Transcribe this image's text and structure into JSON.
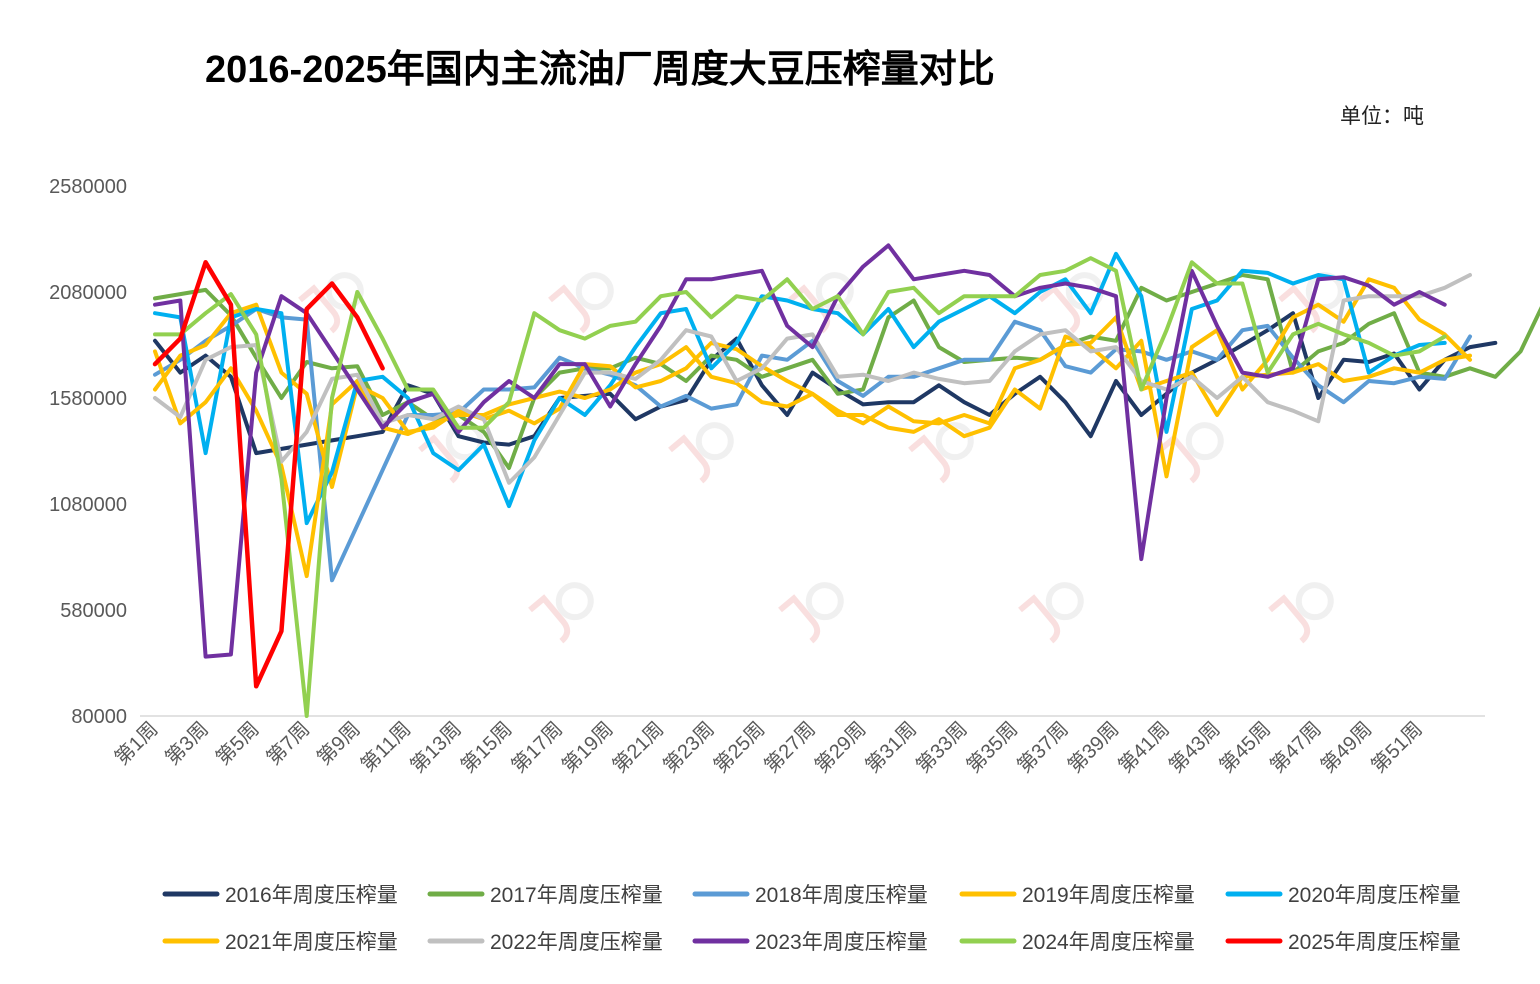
{
  "title": "2016-2025年国内主流油厂周度大豆压榨量对比",
  "unit": "单位：吨",
  "chart_data": {
    "type": "line",
    "ylim": [
      80000,
      2580000
    ],
    "yticks": [
      80000,
      580000,
      1080000,
      1580000,
      2080000,
      2580000
    ],
    "ytick_labels": [
      "80000",
      "580000",
      "1080000",
      "1580000",
      "2080000",
      "2580000"
    ],
    "xtick_labels": [
      "第1周",
      "第3周",
      "第5周",
      "第7周",
      "第9周",
      "第11周",
      "第13周",
      "第15周",
      "第17周",
      "第19周",
      "第21周",
      "第23周",
      "第25周",
      "第27周",
      "第29周",
      "第31周",
      "第33周",
      "第35周",
      "第37周",
      "第39周",
      "第41周",
      "第43周",
      "第45周",
      "第47周",
      "第49周",
      "第51周"
    ],
    "legend_position": "bottom",
    "series": [
      {
        "name": "2016年周度压榨量",
        "color": "#1f3864",
        "values": [
          1850000,
          1700000,
          1780000,
          1680000,
          1320000,
          1340000,
          1360000,
          1380000,
          1400000,
          1420000,
          1640000,
          1600000,
          1400000,
          1370000,
          1360000,
          1400000,
          1580000,
          1590000,
          1600000,
          1480000,
          1540000,
          1570000,
          1760000,
          1860000,
          1640000,
          1500000,
          1700000,
          1620000,
          1550000,
          1560000,
          1560000,
          1640000,
          1560000,
          1500000,
          1600000,
          1680000,
          1560000,
          1400000,
          1660000,
          1500000,
          1600000,
          1700000,
          1760000,
          1830000,
          1900000,
          1980000,
          1580000,
          1760000,
          1750000,
          1790000,
          1620000,
          1760000,
          1820000,
          1840000
        ]
      },
      {
        "name": "2017年周度压榨量",
        "color": "#70ad47",
        "values": [
          2050000,
          2070000,
          2090000,
          1970000,
          1770000,
          1580000,
          1750000,
          1720000,
          1730000,
          1500000,
          1560000,
          1480000,
          1500000,
          1420000,
          1250000,
          1580000,
          1700000,
          1720000,
          1720000,
          1770000,
          1740000,
          1660000,
          1780000,
          1760000,
          1680000,
          1720000,
          1760000,
          1600000,
          1620000,
          1960000,
          2040000,
          1820000,
          1750000,
          1760000,
          1770000,
          1760000,
          1830000,
          1870000,
          1850000,
          2100000,
          2040000,
          2080000,
          2120000,
          2160000,
          2140000,
          1700000,
          1800000,
          1840000,
          1930000,
          1980000,
          1700000,
          1680000,
          1720000,
          1680000,
          1800000,
          2050000,
          2090000
        ]
      },
      {
        "name": "2018年周度压榨量",
        "color": "#5b9bd5",
        "values": [
          1690000,
          1760000,
          1850000,
          1920000,
          2000000,
          1960000,
          1950000,
          720000,
          980000,
          1240000,
          1500000,
          1500000,
          1510000,
          1620000,
          1620000,
          1630000,
          1770000,
          1720000,
          1690000,
          1640000,
          1540000,
          1590000,
          1530000,
          1550000,
          1780000,
          1760000,
          1850000,
          1660000,
          1590000,
          1680000,
          1680000,
          1720000,
          1760000,
          1760000,
          1940000,
          1900000,
          1730000,
          1700000,
          1810000,
          1800000,
          1760000,
          1800000,
          1760000,
          1900000,
          1920000,
          1770000,
          1640000,
          1560000,
          1660000,
          1650000,
          1680000,
          1670000,
          1870000
        ]
      },
      {
        "name": "2019年周度压榨量",
        "color": "#ffc000",
        "values": [
          1620000,
          1780000,
          1830000,
          1980000,
          2020000,
          1700000,
          1600000,
          1160000,
          1640000,
          1580000,
          1420000,
          1440000,
          1520000,
          1480000,
          1520000,
          1460000,
          1530000,
          1740000,
          1730000,
          1630000,
          1660000,
          1720000,
          1840000,
          1810000,
          1730000,
          1660000,
          1600000,
          1500000,
          1500000,
          1440000,
          1420000,
          1480000,
          1400000,
          1440000,
          1620000,
          1530000,
          1870000,
          1820000,
          1720000,
          1850000,
          1210000,
          1820000,
          1900000,
          1620000,
          1760000,
          1960000,
          2020000,
          1940000,
          2140000,
          2100000,
          1950000,
          1880000,
          1760000
        ]
      },
      {
        "name": "2020年周度压榨量",
        "color": "#00b0f0",
        "values": [
          1980000,
          1960000,
          1320000,
          1960000,
          2000000,
          1980000,
          990000,
          1230000,
          1660000,
          1680000,
          1580000,
          1320000,
          1240000,
          1360000,
          1070000,
          1380000,
          1580000,
          1500000,
          1640000,
          1820000,
          1980000,
          2000000,
          1720000,
          1840000,
          2060000,
          2040000,
          2000000,
          1980000,
          1880000,
          2000000,
          1820000,
          1940000,
          2000000,
          2060000,
          1980000,
          2080000,
          2140000,
          1980000,
          2260000,
          2060000,
          1420000,
          2000000,
          2040000,
          2180000,
          2170000,
          2120000,
          2160000,
          2140000,
          1700000,
          1780000,
          1830000,
          1840000
        ]
      },
      {
        "name": "2021年周度压榨量",
        "color": "#ffc000",
        "values": [
          1800000,
          1460000,
          1560000,
          1720000,
          1520000,
          1260000,
          740000,
          1550000,
          1660000,
          1440000,
          1410000,
          1460000,
          1500000,
          1500000,
          1550000,
          1580000,
          1610000,
          1580000,
          1620000,
          1700000,
          1740000,
          1820000,
          1680000,
          1650000,
          1560000,
          1540000,
          1600000,
          1520000,
          1460000,
          1540000,
          1470000,
          1460000,
          1500000,
          1460000,
          1720000,
          1760000,
          1830000,
          1840000,
          1960000,
          1620000,
          1660000,
          1700000,
          1500000,
          1680000,
          1690000,
          1700000,
          1740000,
          1660000,
          1680000,
          1720000,
          1700000,
          1760000,
          1780000
        ]
      },
      {
        "name": "2022年周度压榨量",
        "color": "#c0c0c0",
        "values": [
          1580000,
          1490000,
          1760000,
          1820000,
          1830000,
          1280000,
          1420000,
          1670000,
          1690000,
          1460000,
          1500000,
          1480000,
          1540000,
          1480000,
          1180000,
          1300000,
          1500000,
          1700000,
          1700000,
          1670000,
          1760000,
          1900000,
          1870000,
          1660000,
          1720000,
          1860000,
          1880000,
          1680000,
          1690000,
          1660000,
          1700000,
          1670000,
          1650000,
          1660000,
          1800000,
          1880000,
          1900000,
          1800000,
          1820000,
          1660000,
          1620000,
          1680000,
          1580000,
          1680000,
          1560000,
          1520000,
          1470000,
          2040000,
          2060000,
          2060000,
          2060000,
          2100000,
          2160000
        ]
      },
      {
        "name": "2023年周度压榨量",
        "color": "#7030a0",
        "values": [
          2020000,
          2040000,
          360000,
          370000,
          1700000,
          2060000,
          1980000,
          1800000,
          1620000,
          1440000,
          1560000,
          1600000,
          1420000,
          1560000,
          1660000,
          1580000,
          1740000,
          1740000,
          1540000,
          1740000,
          1920000,
          2140000,
          2140000,
          2160000,
          2180000,
          1920000,
          1820000,
          2060000,
          2200000,
          2300000,
          2140000,
          2160000,
          2180000,
          2160000,
          2060000,
          2100000,
          2120000,
          2100000,
          2060000,
          820000,
          1580000,
          2180000,
          1920000,
          1700000,
          1680000,
          1720000,
          2140000,
          2150000,
          2110000,
          2020000,
          2080000,
          2020000
        ]
      },
      {
        "name": "2024年周度压榨量",
        "color": "#92d050",
        "values": [
          1880000,
          1880000,
          1980000,
          2070000,
          1880000,
          1200000,
          80000,
          1580000,
          2080000,
          1860000,
          1620000,
          1620000,
          1440000,
          1440000,
          1560000,
          1980000,
          1900000,
          1860000,
          1920000,
          1940000,
          2060000,
          2080000,
          1960000,
          2060000,
          2040000,
          2140000,
          2000000,
          2060000,
          1880000,
          2080000,
          2100000,
          1980000,
          2060000,
          2060000,
          2060000,
          2160000,
          2180000,
          2240000,
          2180000,
          1620000,
          1900000,
          2220000,
          2120000,
          2120000,
          1700000,
          1880000,
          1930000,
          1880000,
          1840000,
          1780000,
          1800000,
          1870000
        ]
      },
      {
        "name": "2025年周度压榨量",
        "color": "#ff0000",
        "values": [
          1740000,
          1860000,
          2220000,
          2020000,
          220000,
          480000,
          2000000,
          2120000,
          1960000,
          1720000
        ]
      }
    ]
  }
}
